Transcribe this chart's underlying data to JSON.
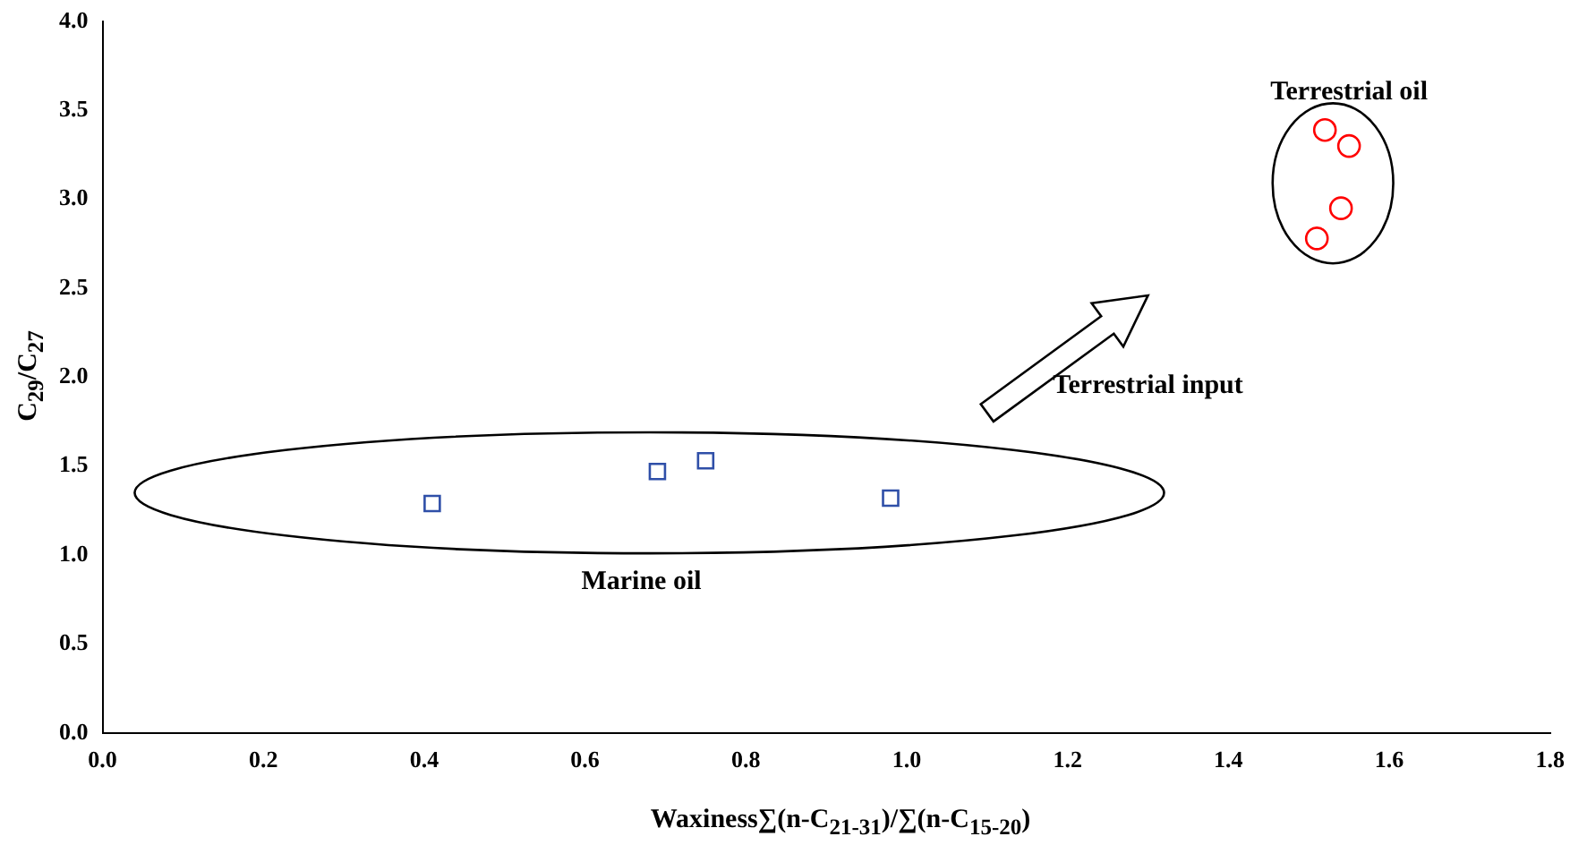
{
  "chart_data": {
    "type": "scatter",
    "xlabel": "Waxiness∑(n-C$_{21-31}$)/∑(n-C$_{15-20}$)",
    "ylabel": "C$_{29}$/C$_{27}$",
    "xlim": [
      0,
      1.8
    ],
    "xticks": [
      {
        "value": 0,
        "label": "0.0"
      },
      0.2,
      0.4,
      0.6,
      0.8,
      {
        "value": 1,
        "label": "1.0"
      },
      1.2,
      1.4,
      1.6,
      1.8
    ],
    "ylim": [
      0,
      4
    ],
    "yticks": [
      {
        "value": 0,
        "label": "0.0"
      },
      0.5,
      {
        "value": 1,
        "label": "1.0"
      },
      1.5,
      {
        "value": 2,
        "label": "2.0"
      },
      2.5,
      {
        "value": 3,
        "label": "3.0"
      },
      3.5,
      {
        "value": 4,
        "label": "4.0"
      }
    ],
    "grid": false,
    "legend": false,
    "series": [
      {
        "color": "#2f4fa8",
        "marker": "square",
        "x": [
          0.41,
          0.69,
          0.75,
          0.98
        ],
        "values": [
          1.29,
          1.47,
          1.53,
          1.32
        ]
      },
      {
        "color": "#ff0000",
        "marker": "circle",
        "x": [
          1.52,
          1.55,
          1.54,
          1.51
        ],
        "values": [
          3.39,
          3.3,
          2.95,
          2.78
        ]
      }
    ],
    "annotations": [
      "Terrestrial oil",
      "Marine oil",
      "Terrestrial input"
    ]
  }
}
